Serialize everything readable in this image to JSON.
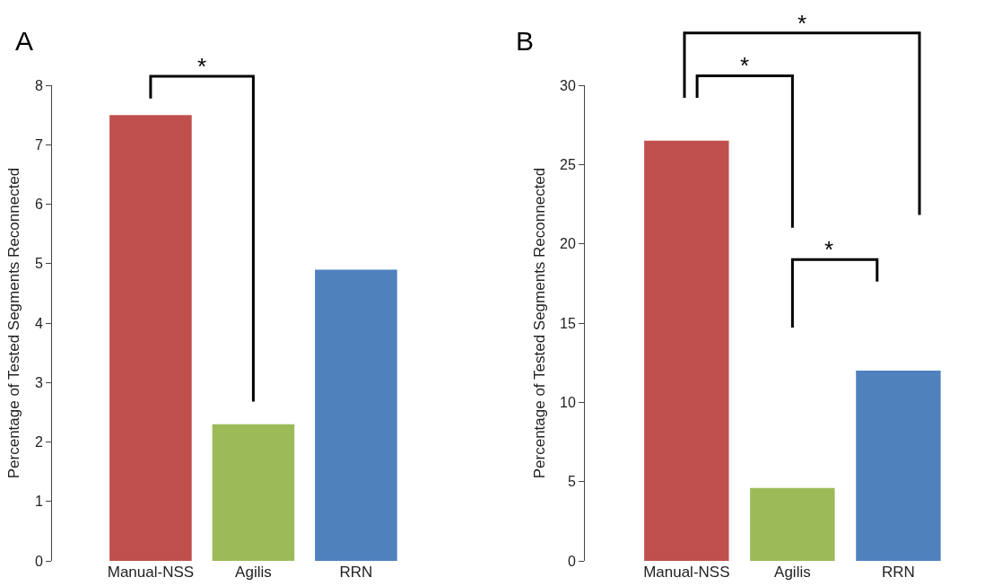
{
  "chart_data": [
    {
      "type": "bar",
      "categories": [
        "Manual-NSS",
        "Agilis",
        "RRN"
      ],
      "values": [
        7.5,
        2.3,
        4.9
      ],
      "colors": [
        "#c0504d",
        "#9bbb59",
        "#4f81bd"
      ],
      "ylabel": "Percentage of Tested Segments Reconnected",
      "ylim": [
        0,
        8
      ],
      "yticks": [
        0,
        1,
        2,
        3,
        4,
        5,
        6,
        7,
        8
      ],
      "grid": false,
      "annotations": [
        "A",
        "*"
      ]
    },
    {
      "type": "bar",
      "categories": [
        "Manual-NSS",
        "Agilis",
        "RRN"
      ],
      "values": [
        26.5,
        4.6,
        12
      ],
      "colors": [
        "#c0504d",
        "#9bbb59",
        "#4f81bd"
      ],
      "ylabel": "Percentage of Tested Segments Reconnected",
      "ylim": [
        0,
        30
      ],
      "yticks": [
        0,
        5,
        10,
        15,
        20,
        25,
        30
      ],
      "grid": false,
      "annotations": [
        "B",
        "*",
        "*",
        "*"
      ]
    }
  ]
}
